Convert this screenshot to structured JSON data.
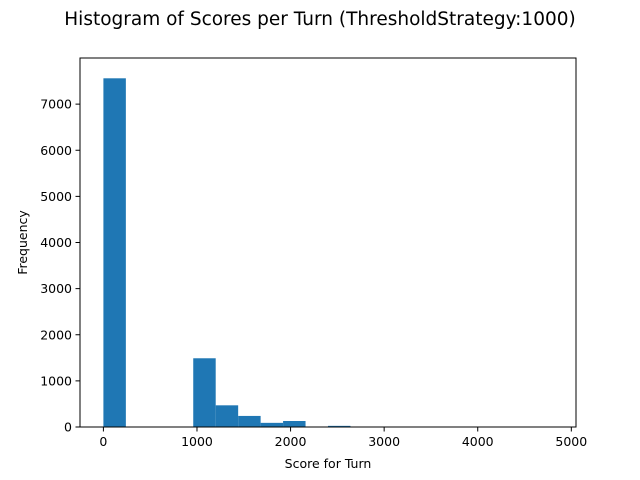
{
  "chart_data": {
    "type": "bar",
    "title": "Histogram of Scores per Turn (ThresholdStrategy:1000)",
    "xlabel": "Score for Turn",
    "ylabel": "Frequency",
    "xlim": [
      -250,
      5050
    ],
    "ylim": [
      0,
      8000
    ],
    "xticks": [
      0,
      1000,
      2000,
      3000,
      4000,
      5000
    ],
    "yticks": [
      0,
      1000,
      2000,
      3000,
      4000,
      5000,
      6000,
      7000
    ],
    "bar_color": "#1f77b4",
    "grid": false,
    "bins": [
      {
        "start": 0,
        "end": 240,
        "count": 7560
      },
      {
        "start": 240,
        "end": 480,
        "count": 0
      },
      {
        "start": 480,
        "end": 720,
        "count": 0
      },
      {
        "start": 720,
        "end": 960,
        "count": 0
      },
      {
        "start": 960,
        "end": 1200,
        "count": 1490
      },
      {
        "start": 1200,
        "end": 1440,
        "count": 470
      },
      {
        "start": 1440,
        "end": 1680,
        "count": 240
      },
      {
        "start": 1680,
        "end": 1920,
        "count": 90
      },
      {
        "start": 1920,
        "end": 2160,
        "count": 130
      },
      {
        "start": 2160,
        "end": 2400,
        "count": 8
      },
      {
        "start": 2400,
        "end": 2640,
        "count": 25
      },
      {
        "start": 2640,
        "end": 2880,
        "count": 5
      },
      {
        "start": 2880,
        "end": 3120,
        "count": 4
      },
      {
        "start": 3120,
        "end": 3360,
        "count": 2
      },
      {
        "start": 3360,
        "end": 3600,
        "count": 1
      },
      {
        "start": 3600,
        "end": 3840,
        "count": 1
      },
      {
        "start": 3840,
        "end": 4080,
        "count": 0
      },
      {
        "start": 4080,
        "end": 4320,
        "count": 0
      },
      {
        "start": 4320,
        "end": 4560,
        "count": 0
      },
      {
        "start": 4560,
        "end": 4800,
        "count": 1
      }
    ]
  }
}
